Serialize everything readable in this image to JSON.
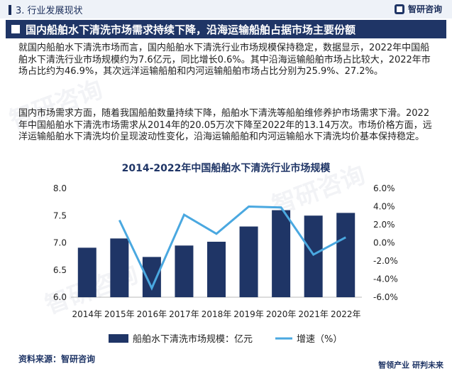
{
  "header": {
    "section": "3. 行业发展现状",
    "logo_text": "智研咨询"
  },
  "banner": {
    "title": "国内船舶水下清洗市场需求持续下降，沿海运输船舶占据市场主要份额"
  },
  "paragraphs": {
    "p1": "就国内船舶水下清洗市场而言，国内船舶水下清洗行业市场规模保持稳定，数据显示，2022年中国船舶水下清洗行业市场规模约为7.6亿元，同比增长0.6%。其中沿海运输船舶市场占比较大，2022年市场占比约为46.9%，其次远洋运输船舶和内河运输船舶市场占比分别为25.9%、27.2%。",
    "p2": "国内市场需求方面，随着我国船舶数量持续下降，船舶水下清洗等船舶维修养护市场需求下滑。2022年中国船舶水下清洗市场需求从2014年的20.05万次下降至2022年的13.14万次。市场价格方面，远洋运输船舶水下清洗均价呈现波动性变化，沿海运输船舶和内河运输船水下清洗均价基本保持稳定。"
  },
  "chart_data": {
    "type": "bar",
    "title": "2014-2022年中国船舶水下清洗行业市场规模",
    "categories": [
      "2014年",
      "2015年",
      "2016年",
      "2017年",
      "2018年",
      "2019年",
      "2020年",
      "2021年",
      "2022年"
    ],
    "series": [
      {
        "name": "船舶水下清洗市场规模：亿元",
        "type": "bar",
        "axis": "left",
        "color": "#1f3566",
        "values": [
          6.91,
          7.08,
          6.74,
          6.95,
          7.02,
          7.3,
          7.6,
          7.5,
          7.55
        ]
      },
      {
        "name": "增速（%）",
        "type": "line",
        "axis": "right",
        "color": "#4aa8e0",
        "values": [
          null,
          2.5,
          -5.0,
          3.1,
          1.0,
          4.0,
          3.9,
          -1.3,
          0.6
        ]
      }
    ],
    "ylim": [
      6.0,
      8.0
    ],
    "yticks": [
      "6.0",
      "6.5",
      "7.0",
      "7.5",
      "8.0"
    ],
    "y2lim": [
      -6.0,
      6.0
    ],
    "y2ticks": [
      "-6.0%",
      "-4.0%",
      "-2.0%",
      "0.0%",
      "2.0%",
      "4.0%",
      "6.0%"
    ],
    "legend_position": "bottom"
  },
  "source": "资料来源：智研咨询",
  "footer": "智领产业  研判未来"
}
